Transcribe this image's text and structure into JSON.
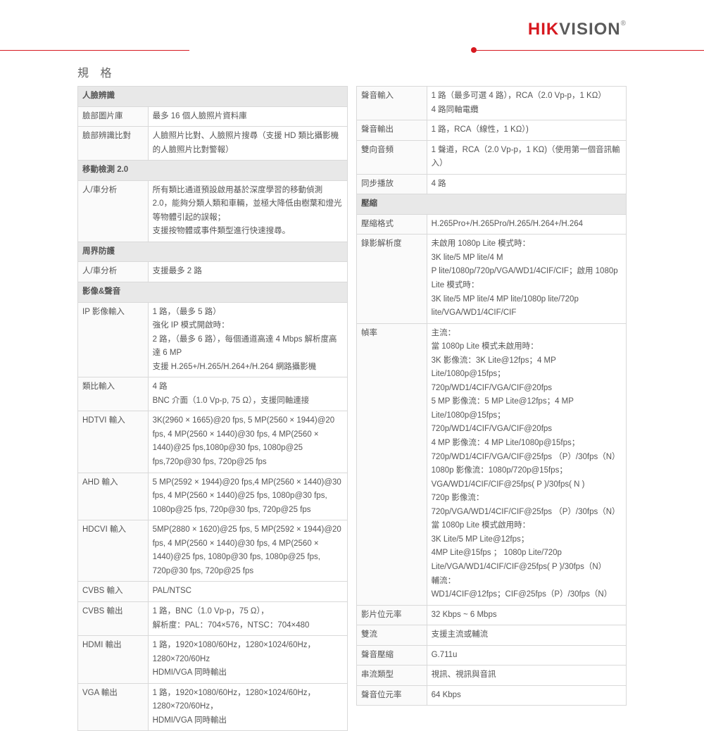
{
  "brand": {
    "hik": "HIK",
    "vision": "VISION",
    "reg": "®"
  },
  "title": "規 格",
  "left": {
    "sections": [
      {
        "header": "人臉辨識",
        "rows": [
          {
            "label": "臉部圖片庫",
            "value": "最多 16 個人臉照片資料庫"
          },
          {
            "label": "臉部辨識比對",
            "value": "人臉照片比對、人臉照片搜尋（支援 HD 類比攝影機的人臉照片比對警報）"
          }
        ]
      },
      {
        "header": "移動檢測 2.0",
        "rows": [
          {
            "label": "人/車分析",
            "value": "所有類比通道預設啟用基於深度學習的移動偵測 2.0，能夠分類人類和車輛，並極大降低由樹葉和燈光等物體引起的誤報；\n支援按物體或事件類型進行快速搜尋。"
          }
        ]
      },
      {
        "header": "周界防護",
        "rows": [
          {
            "label": "人/車分析",
            "value": "支援最多 2 路"
          }
        ]
      },
      {
        "header": "影像&聲音",
        "rows": [
          {
            "label": "IP 影像輸入",
            "value": "1 路，（最多 5 路）\n強化 IP 模式開啟時：\n2 路，（最多 6 路），每個通道高達 4 Mbps 解析度高達 6 MP\n支援 H.265+/H.265/H.264+/H.264 網路攝影機"
          },
          {
            "label": "類比輸入",
            "value": "4 路\nBNC 介面（1.0 Vp-p, 75 Ω），支援同軸連接"
          },
          {
            "label": "HDTVI 輸入",
            "value": "3K(2960 × 1665)@20 fps, 5 MP(2560 × 1944)@20 fps, 4 MP(2560 × 1440)@30 fps, 4 MP(2560 × 1440)@25 fps,1080p@30 fps, 1080p@25 fps,720p@30 fps, 720p@25 fps"
          },
          {
            "label": "AHD 輸入",
            "value": "5 MP(2592 × 1944)@20 fps,4 MP(2560 × 1440)@30 fps, 4 MP(2560 × 1440)@25 fps, 1080p@30 fps, 1080p@25 fps, 720p@30 fps, 720p@25 fps"
          },
          {
            "label": "HDCVI 輸入",
            "value": "5MP(2880 × 1620)@25 fps, 5 MP(2592 × 1944)@20 fps, 4 MP(2560 × 1440)@30 fps, 4 MP(2560 × 1440)@25 fps, 1080p@30 fps, 1080p@25 fps, 720p@30 fps, 720p@25 fps"
          },
          {
            "label": "CVBS 輸入",
            "value": "PAL/NTSC"
          },
          {
            "label": "CVBS 輸出",
            "value": "1 路，BNC（1.0 Vp-p，75 Ω），\n解析度：PAL：704×576，NTSC：704×480"
          },
          {
            "label": "HDMI 輸出",
            "value": "1 路，1920×1080/60Hz，1280×1024/60Hz，1280×720/60Hz\nHDMI/VGA 同時輸出"
          },
          {
            "label": "VGA 輸出",
            "value": "1 路，1920×1080/60Hz，1280×1024/60Hz，1280×720/60Hz，\nHDMI/VGA 同時輸出"
          }
        ]
      }
    ]
  },
  "right": {
    "sections": [
      {
        "header": null,
        "rows": [
          {
            "label": "聲音輸入",
            "value": "1 路（最多可選 4 路），RCA（2.0 Vp-p，1 KΩ）\n4 路同軸電纜"
          },
          {
            "label": "聲音輸出",
            "value": "1 路，RCA（線性，1 KΩ）)"
          },
          {
            "label": "雙向音頻",
            "value": "1 聲道，RCA（2.0 Vp-p，1 KΩ)（使用第一個音訊輸入）"
          },
          {
            "label": "同步播放",
            "value": "4 路"
          }
        ]
      },
      {
        "header": "壓縮",
        "rows": [
          {
            "label": "壓縮格式",
            "value": "H.265Pro+/H.265Pro/H.265/H.264+/H.264"
          },
          {
            "label": "錄影解析度",
            "value": "未啟用 1080p Lite 模式時：\n3K lite/5 MP lite/4 M\nP lite/1080p/720p/VGA/WD1/4CIF/CIF；啟用 1080p Lite 模式時：\n3K lite/5 MP lite/4 MP lite/1080p lite/720p lite/VGA/WD1/4CIF/CIF"
          },
          {
            "label": "幀率",
            "value": "主流：\n當 1080p Lite 模式未啟用時：\n3K 影像流：3K Lite@12fps；4 MP Lite/1080p@15fps；\n720p/WD1/4CIF/VGA/CIF@20fps\n5 MP 影像流：5 MP Lite@12fps；4 MP Lite/1080p@15fps；\n720p/WD1/4CIF/VGA/CIF@20fps\n4 MP 影像流：4 MP Lite/1080p@15fps；720p/WD1/4CIF/VGA/CIF@25fps （P）/30fps（N）\n1080p 影像流：1080p/720p@15fps；VGA/WD1/4CIF/CIF@25fps( P )/30fps( N )\n720p 影像流：\n720p/VGA/WD1/4CIF/CIF@25fps （P）/30fps（N）\n當 1080p Lite 模式啟用時：\n3K Lite/5 MP Lite@12fps；\n4MP Lite@15fps ； 1080p Lite/720p Lite/VGA/WD1/4CIF/CIF@25fps( P )/30fps（N）\n輔流：\nWD1/4CIF@12fps；CIF@25fps（P）/30fps（N）"
          },
          {
            "label": "影片位元率",
            "value": "32 Kbps ~ 6 Mbps"
          },
          {
            "label": "雙流",
            "value": "支援主流或輔流"
          },
          {
            "label": "聲音壓縮",
            "value": "G.711u"
          },
          {
            "label": "串流類型",
            "value": "視訊、視訊與音訊"
          },
          {
            "label": "聲音位元率",
            "value": "64 Kbps"
          }
        ]
      }
    ]
  }
}
